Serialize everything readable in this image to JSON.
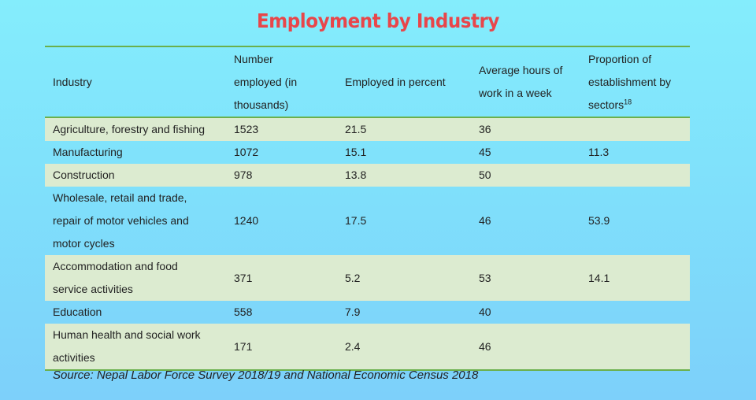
{
  "title": "Employment by Industry",
  "headers": {
    "industry": "Industry",
    "number": "Number employed (in thousands)",
    "percent": "Employed in percent",
    "hours": "Average hours of work in a week",
    "proportion": "Proportion of establishment by sectors",
    "proportion_footnote": "18"
  },
  "rows": [
    {
      "industry": "Agriculture, forestry and fishing",
      "number": "1523",
      "percent": "21.5",
      "hours": "36",
      "proportion": ""
    },
    {
      "industry": "Manufacturing",
      "number": "1072",
      "percent": "15.1",
      "hours": "45",
      "proportion": "11.3"
    },
    {
      "industry": "Construction",
      "number": "978",
      "percent": "13.8",
      "hours": "50",
      "proportion": ""
    },
    {
      "industry": "Wholesale, retail and trade, repair of motor vehicles and motor cycles",
      "number": "1240",
      "percent": "17.5",
      "hours": "46",
      "proportion": "53.9"
    },
    {
      "industry": "Accommodation and food service activities",
      "number": "371",
      "percent": "5.2",
      "hours": "53",
      "proportion": "14.1"
    },
    {
      "industry": "Education",
      "number": "558",
      "percent": "7.9",
      "hours": "40",
      "proportion": ""
    },
    {
      "industry": "Human health and social work activities",
      "number": "171",
      "percent": "2.4",
      "hours": "46",
      "proportion": ""
    }
  ],
  "source": "Source: Nepal Labor Force Survey 2018/19 and National Economic Census 2018",
  "colors": {
    "title": "#e8464a",
    "rule": "#6ab04c",
    "band": "#dcebd0"
  }
}
